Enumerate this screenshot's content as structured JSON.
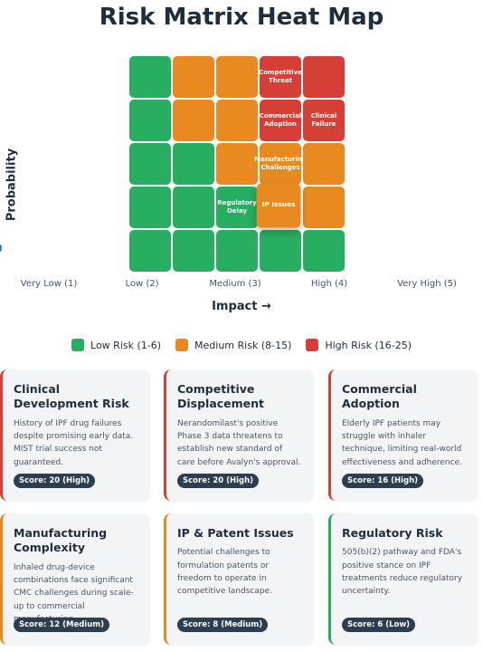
{
  "title": "Risk Matrix Heat Map",
  "chart_data": {
    "type": "heatmap",
    "title": "Risk Matrix Heat Map",
    "xlabel": "Impact →",
    "ylabel": "Probability",
    "x_tick_labels": [
      "Very Low (1)",
      "Low (2)",
      "Medium (3)",
      "High (4)",
      "Very High (5)"
    ],
    "grid": [
      [
        "low",
        "medium",
        "medium",
        "high",
        "high"
      ],
      [
        "low",
        "medium",
        "medium",
        "high",
        "high"
      ],
      [
        "low",
        "low",
        "medium",
        "medium",
        "medium"
      ],
      [
        "low",
        "low",
        "low",
        "medium",
        "medium"
      ],
      [
        "low",
        "low",
        "low",
        "low",
        "low"
      ]
    ],
    "cell_labels": [
      {
        "row": 0,
        "col": 3,
        "text": "Competitive Threat"
      },
      {
        "row": 1,
        "col": 3,
        "text": "Commercial Adoption"
      },
      {
        "row": 1,
        "col": 4,
        "text": "Clinical Failure"
      },
      {
        "row": 2,
        "col": 3,
        "text": "Manufacturing Challenges"
      },
      {
        "row": 3,
        "col": 2,
        "text": "Regulatory Delay"
      },
      {
        "row": 3,
        "col": 3,
        "text": "IP Issues"
      }
    ],
    "colors": {
      "low": "#27ae60",
      "medium": "#e88a1f",
      "high": "#d63f35"
    }
  },
  "legend": [
    {
      "label": "Low Risk (1-6)",
      "color": "#27ae60"
    },
    {
      "label": "Medium Risk (8-15)",
      "color": "#e88a1f"
    },
    {
      "label": "High Risk (16-25)",
      "color": "#d63f35"
    }
  ],
  "cards": [
    {
      "title": "Clinical Development Risk",
      "desc": "History of IPF drug failures despite promising early data. MIST trial success not guaranteed.",
      "score": "Score: 20 (High)",
      "level": "high"
    },
    {
      "title": "Competitive Displacement",
      "desc": "Nerandomilast's positive Phase 3 data threatens to establish new standard of care before Avalyn's approval.",
      "score": "Score: 20 (High)",
      "level": "high"
    },
    {
      "title": "Commercial Adoption",
      "desc": "Elderly IPF patients may struggle with inhaler technique, limiting real-world effectiveness and adherence.",
      "score": "Score: 16 (High)",
      "level": "high"
    },
    {
      "title": "Manufacturing Complexity",
      "desc": "Inhaled drug-device combinations face significant CMC challenges during scale-up to commercial manufacturing.",
      "score": "Score: 12 (Medium)",
      "level": "medium"
    },
    {
      "title": "IP & Patent Issues",
      "desc": "Potential challenges to formulation patents or freedom to operate in competitive landscape.",
      "score": "Score: 8 (Medium)",
      "level": "medium"
    },
    {
      "title": "Regulatory Risk",
      "desc": "505(b)(2) pathway and FDA's positive stance on IPF treatments reduce regulatory uncertainty.",
      "score": "Score: 6 (Low)",
      "level": "low"
    }
  ]
}
